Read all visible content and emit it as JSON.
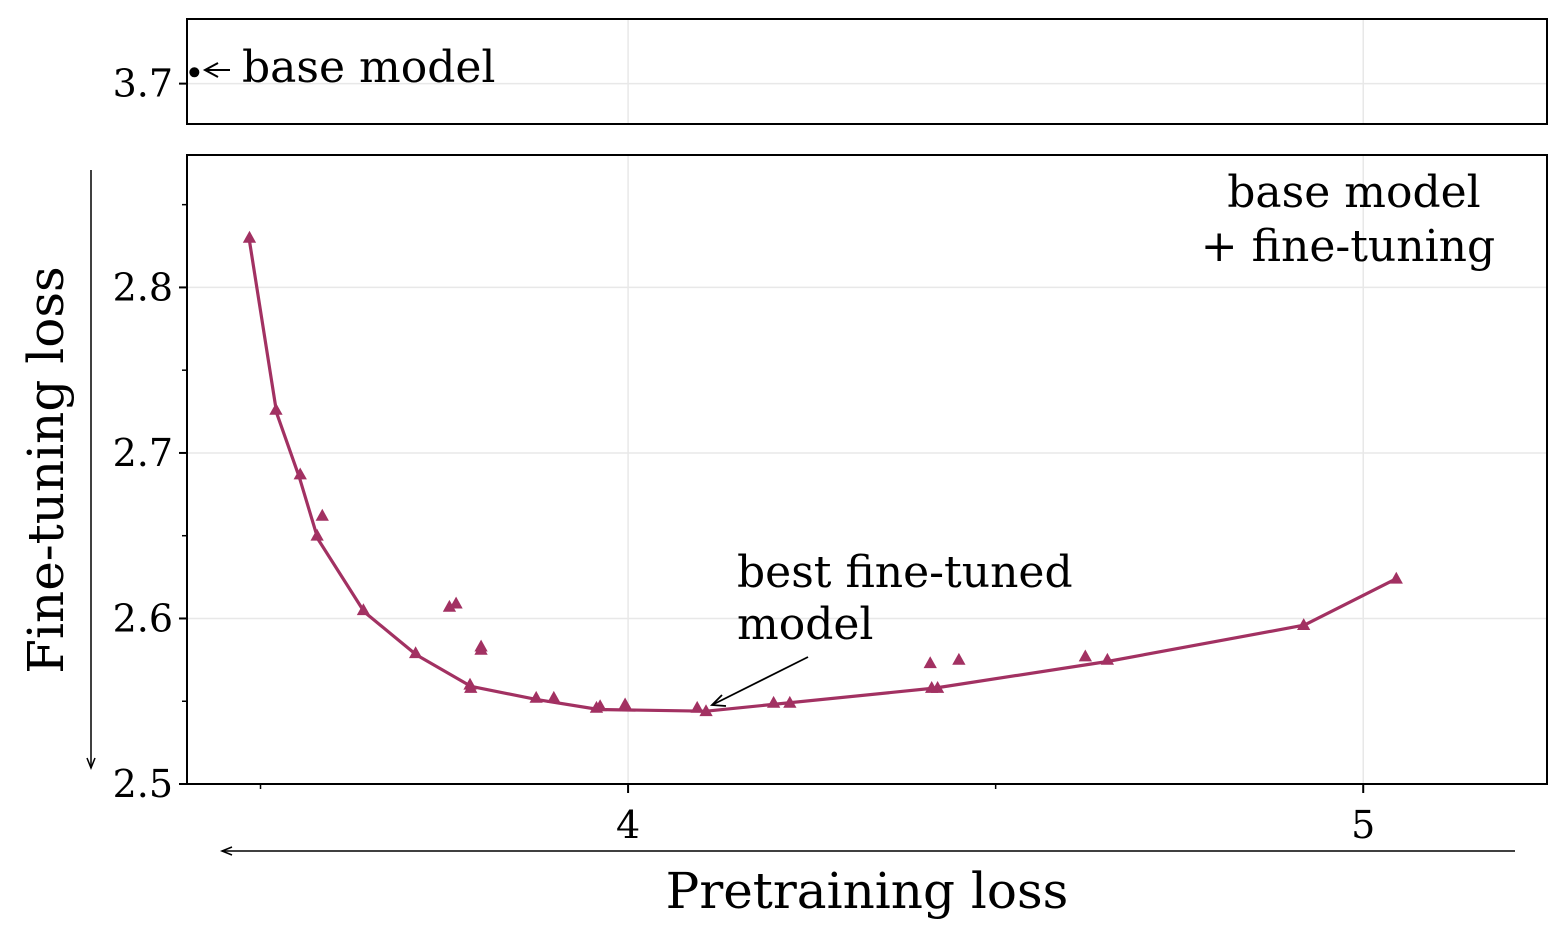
{
  "chart_data": {
    "type": "line",
    "xlabel": "Pretraining loss",
    "ylabel": "Fine-tuning loss",
    "x_ticks": [
      {
        "value": 4,
        "label": "4"
      },
      {
        "value": 5,
        "label": "5"
      }
    ],
    "x_minor_ticks": [
      3.5,
      4.5
    ],
    "xlim": [
      3.4,
      5.25
    ],
    "top_panel": {
      "ylim": [
        3.675,
        3.74
      ],
      "y_ticks": [
        {
          "value": 3.7,
          "label": "3.7"
        }
      ],
      "points": [
        {
          "x": 3.41,
          "y": 3.707,
          "marker": "circle"
        }
      ],
      "annotation": "base model"
    },
    "bottom_panel": {
      "ylim": [
        2.5,
        2.88
      ],
      "y_ticks": [
        {
          "value": 2.5,
          "label": "2.5"
        },
        {
          "value": 2.6,
          "label": "2.6"
        },
        {
          "value": 2.7,
          "label": "2.7"
        },
        {
          "value": 2.8,
          "label": "2.8"
        }
      ],
      "y_minor_ticks": [
        2.55,
        2.65,
        2.75,
        2.85
      ],
      "label_block": [
        "base model",
        "+ fine-tuning"
      ],
      "annotation": {
        "lines": [
          "best fine-tuned",
          "model"
        ],
        "target": {
          "x": 4.11,
          "y": 2.5475
        }
      },
      "series": [
        {
          "name": "",
          "color": "#A23162",
          "marker": "triangle",
          "line": [
            {
              "x": 3.485,
              "y": 2.828
            },
            {
              "x": 3.522,
              "y": 2.724
            },
            {
              "x": 3.553,
              "y": 2.685
            },
            {
              "x": 3.578,
              "y": 2.648
            },
            {
              "x": 3.641,
              "y": 2.604
            },
            {
              "x": 3.712,
              "y": 2.578
            },
            {
              "x": 3.786,
              "y": 2.559
            },
            {
              "x": 3.876,
              "y": 2.551
            },
            {
              "x": 3.96,
              "y": 2.545
            },
            {
              "x": 4.106,
              "y": 2.544
            },
            {
              "x": 4.418,
              "y": 2.558
            },
            {
              "x": 4.652,
              "y": 2.574
            },
            {
              "x": 4.92,
              "y": 2.596
            },
            {
              "x": 5.045,
              "y": 2.624
            }
          ],
          "scatter": [
            {
              "x": 3.485,
              "y": 2.83
            },
            {
              "x": 3.521,
              "y": 2.726
            },
            {
              "x": 3.554,
              "y": 2.687
            },
            {
              "x": 3.584,
              "y": 2.662
            },
            {
              "x": 3.577,
              "y": 2.65
            },
            {
              "x": 3.64,
              "y": 2.605
            },
            {
              "x": 3.757,
              "y": 2.607
            },
            {
              "x": 3.766,
              "y": 2.609
            },
            {
              "x": 3.8,
              "y": 2.583
            },
            {
              "x": 3.8,
              "y": 2.581
            },
            {
              "x": 3.711,
              "y": 2.579
            },
            {
              "x": 3.785,
              "y": 2.56
            },
            {
              "x": 3.786,
              "y": 2.558
            },
            {
              "x": 3.875,
              "y": 2.552
            },
            {
              "x": 3.899,
              "y": 2.552
            },
            {
              "x": 3.957,
              "y": 2.546
            },
            {
              "x": 3.962,
              "y": 2.547
            },
            {
              "x": 3.996,
              "y": 2.548
            },
            {
              "x": 4.094,
              "y": 2.546
            },
            {
              "x": 4.106,
              "y": 2.544
            },
            {
              "x": 4.198,
              "y": 2.549
            },
            {
              "x": 4.22,
              "y": 2.549
            },
            {
              "x": 4.411,
              "y": 2.573
            },
            {
              "x": 4.413,
              "y": 2.558
            },
            {
              "x": 4.421,
              "y": 2.558
            },
            {
              "x": 4.45,
              "y": 2.575
            },
            {
              "x": 4.622,
              "y": 2.577
            },
            {
              "x": 4.652,
              "y": 2.575
            },
            {
              "x": 4.919,
              "y": 2.596
            },
            {
              "x": 5.045,
              "y": 2.624
            }
          ]
        }
      ]
    }
  }
}
